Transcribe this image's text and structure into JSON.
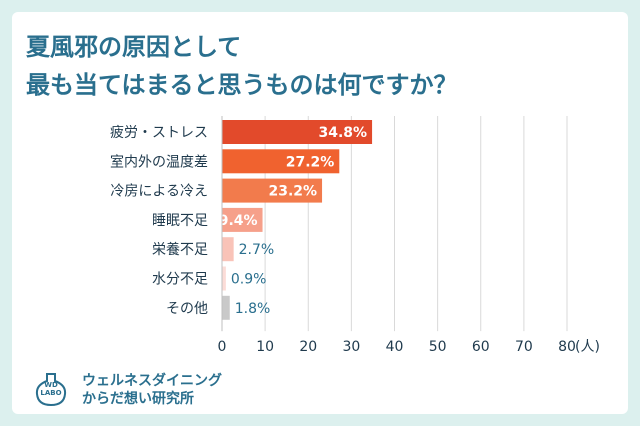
{
  "title": {
    "line1": "夏風邪の原因として",
    "line2": "最も当てはまると思うものは何ですか？"
  },
  "brand": {
    "logo_line1": "WD",
    "logo_line2": "LABO",
    "name": "ウェルネスダイニング",
    "subtitle": "からだ想い研究所"
  },
  "colors": {
    "background": "#dcf0ee",
    "title": "#2a6f8e",
    "axis_text": "#1f3a4d",
    "grid": "#d9d9d9"
  },
  "chart_data": {
    "type": "bar",
    "orientation": "horizontal",
    "categories": [
      "疲労・ストレス",
      "室内外の温度差",
      "冷房による冷え",
      "睡眠不足",
      "栄養不足",
      "水分不足",
      "その他"
    ],
    "values": [
      34.8,
      27.2,
      23.2,
      9.4,
      2.7,
      0.9,
      1.8
    ],
    "value_labels": [
      "34.8%",
      "27.2%",
      "23.2%",
      "9.4%",
      "2.7%",
      "0.9%",
      "1.8%"
    ],
    "bar_colors": [
      "#e24a2b",
      "#f0622f",
      "#f27b4c",
      "#f6a08a",
      "#f9c3b8",
      "#fbdcd7",
      "#c9c9c9"
    ],
    "label_inside": [
      true,
      true,
      true,
      true,
      false,
      false,
      false
    ],
    "xlim": [
      0,
      80
    ],
    "xticks": [
      0,
      10,
      20,
      30,
      40,
      50,
      60,
      70,
      80
    ],
    "x_unit": "(人)",
    "grid": true
  }
}
